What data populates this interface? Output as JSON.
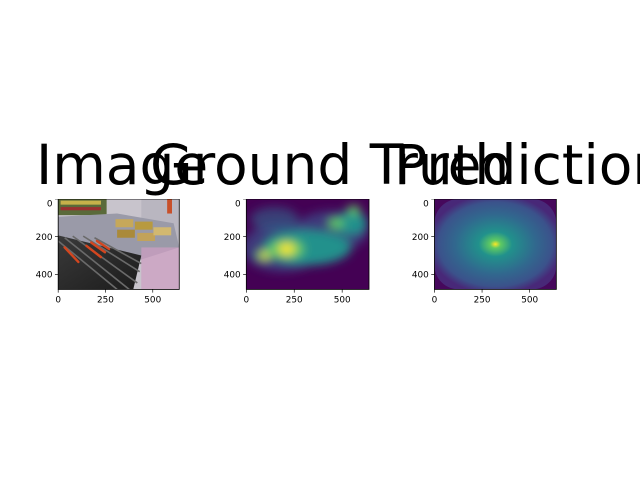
{
  "chart_data": [
    {
      "type": "image",
      "title": "Image",
      "x_ticks": [
        "0",
        "250",
        "500"
      ],
      "y_ticks": [
        "0",
        "200",
        "400"
      ],
      "x_tick_values": [
        0,
        250,
        500
      ],
      "y_tick_values": [
        0,
        200,
        400
      ],
      "xlim": [
        0,
        640
      ],
      "ylim": [
        480,
        0
      ],
      "content": "photo of hot dog roller grill with condiment trays"
    },
    {
      "type": "heatmap",
      "title": "Ground Truth",
      "x_ticks": [
        "0",
        "250",
        "500"
      ],
      "y_ticks": [
        "0",
        "200",
        "400"
      ],
      "x_tick_values": [
        0,
        250,
        500
      ],
      "y_tick_values": [
        0,
        200,
        400
      ],
      "xlim": [
        0,
        640
      ],
      "ylim": [
        480,
        0
      ],
      "colormap": "viridis",
      "hotspots": [
        {
          "x": 210,
          "y": 265,
          "value": 0.95
        },
        {
          "x": 95,
          "y": 300,
          "value": 0.8
        },
        {
          "x": 290,
          "y": 220,
          "value": 0.65
        },
        {
          "x": 350,
          "y": 160,
          "value": 0.6
        },
        {
          "x": 470,
          "y": 125,
          "value": 0.7
        },
        {
          "x": 560,
          "y": 60,
          "value": 0.6
        },
        {
          "x": 130,
          "y": 60,
          "value": 0.35
        }
      ]
    },
    {
      "type": "heatmap",
      "title": "Prediction",
      "x_ticks": [
        "0",
        "250",
        "500"
      ],
      "y_ticks": [
        "0",
        "200",
        "400"
      ],
      "x_tick_values": [
        0,
        250,
        500
      ],
      "y_tick_values": [
        0,
        200,
        400
      ],
      "xlim": [
        0,
        640
      ],
      "ylim": [
        480,
        0
      ],
      "colormap": "viridis",
      "hotspots": [
        {
          "x": 320,
          "y": 240,
          "value": 1.0
        }
      ]
    }
  ]
}
